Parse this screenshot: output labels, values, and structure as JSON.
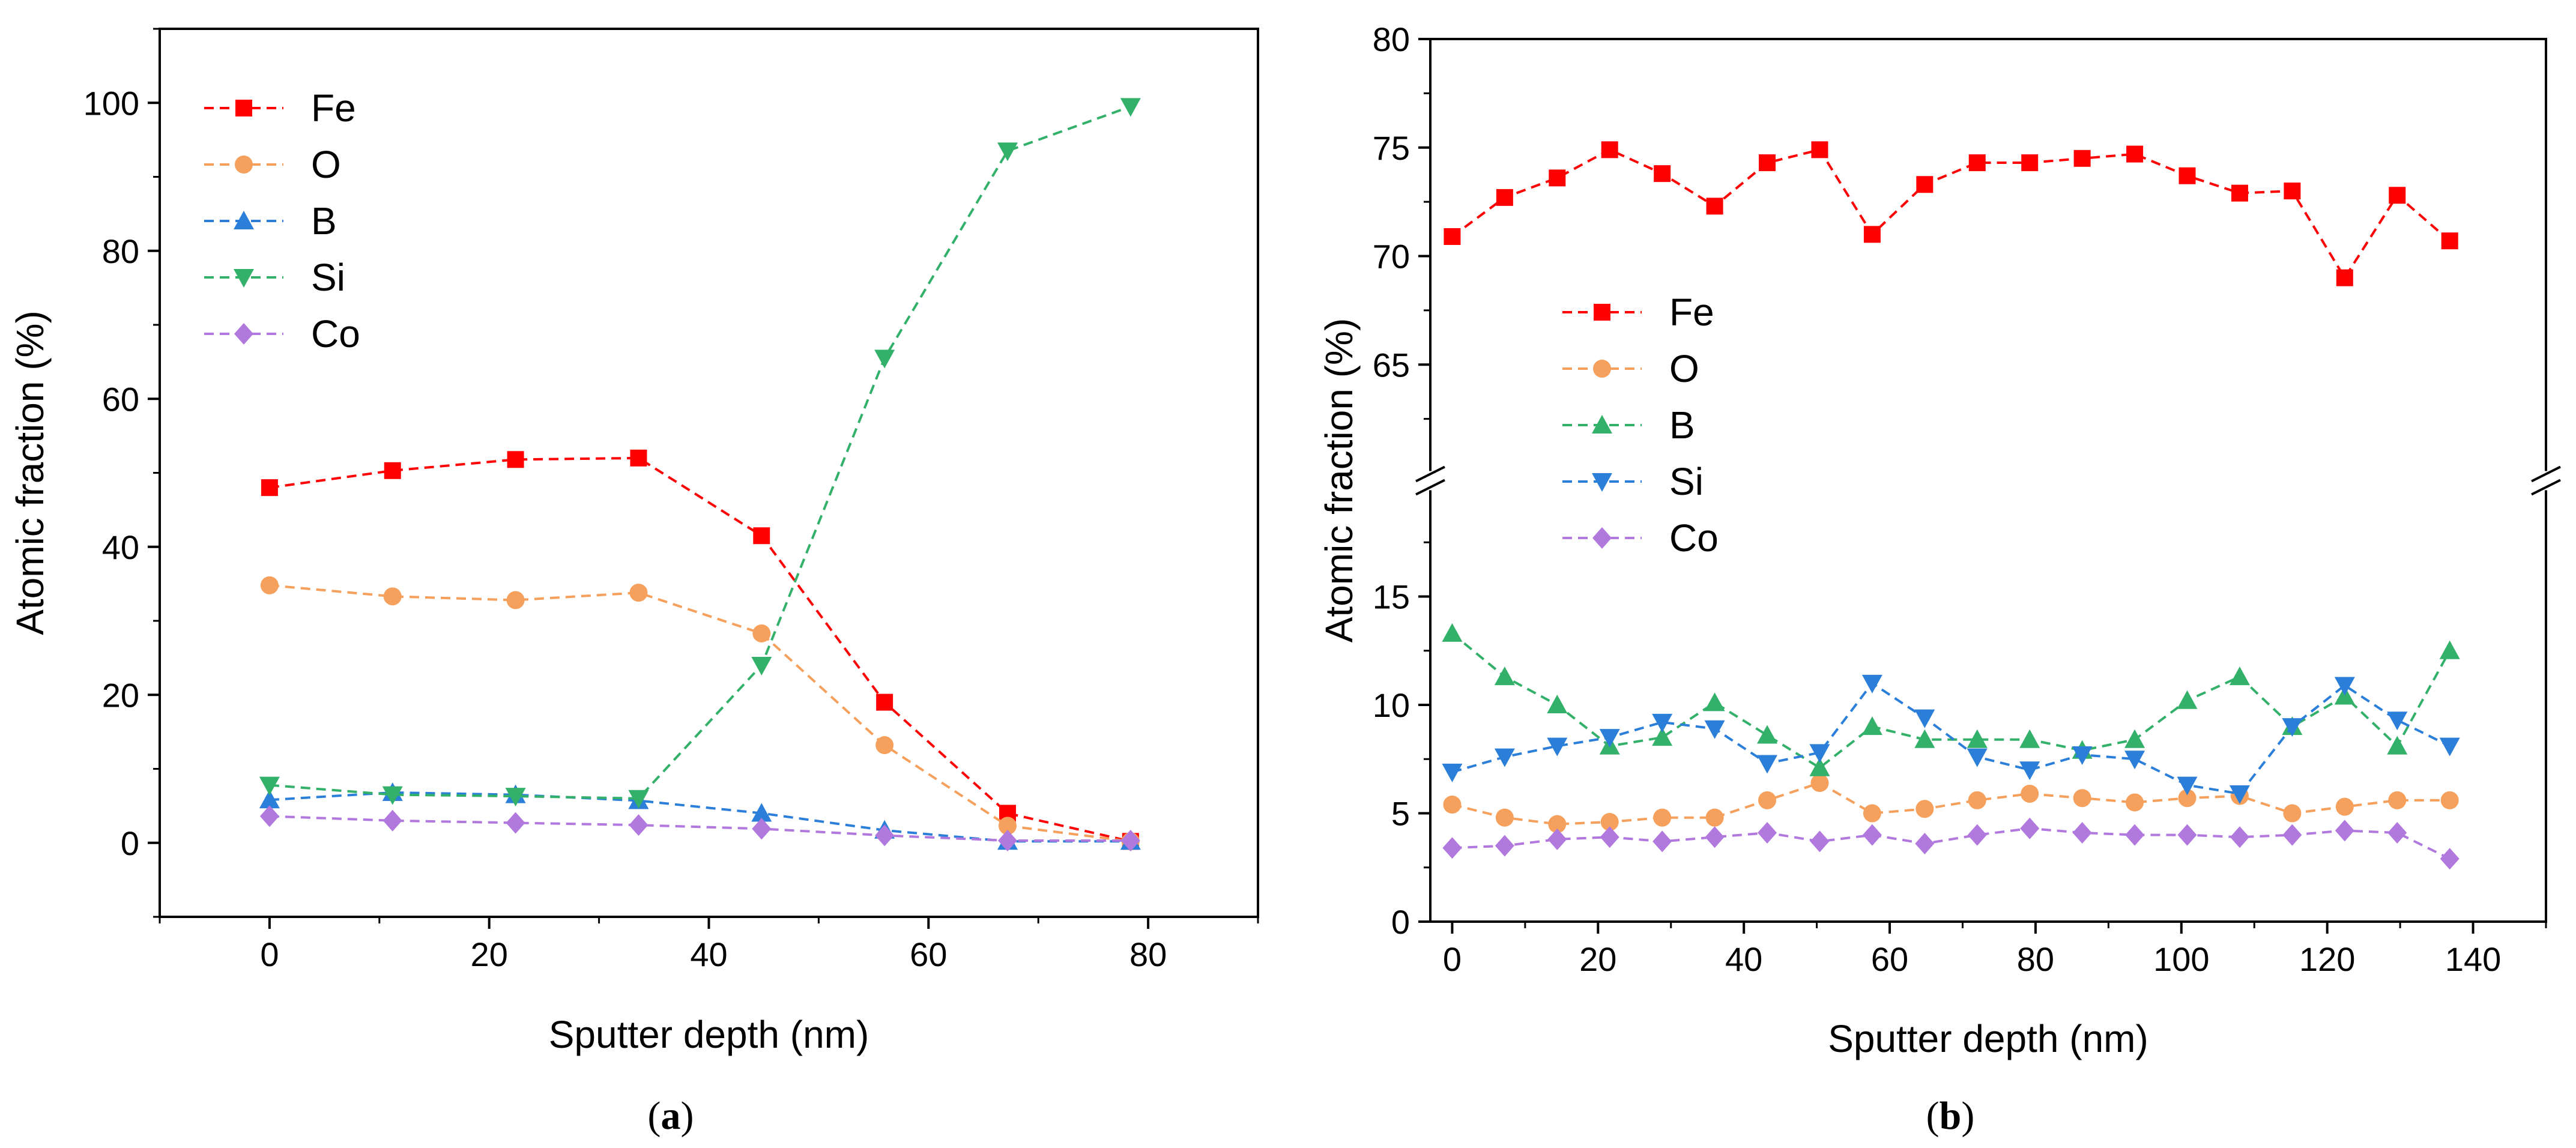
{
  "chart_data": [
    {
      "type": "line",
      "panel_label": "a",
      "xlabel": "Sputter depth (nm)",
      "ylabel": "Atomic fraction (%)",
      "xlim": [
        -10,
        90
      ],
      "ylim": [
        -10,
        110
      ],
      "xticks": [
        0,
        20,
        40,
        60,
        80
      ],
      "yticks": [
        0,
        20,
        40,
        60,
        80,
        100
      ],
      "legend_position": "top-left",
      "x": [
        0,
        11.2,
        22.4,
        33.6,
        44.8,
        56,
        67.2,
        78.4
      ],
      "series": [
        {
          "name": "Fe",
          "marker": "square",
          "color": "#ff0000",
          "values": [
            48,
            50.3,
            51.8,
            52,
            41.5,
            19,
            4,
            0.2
          ]
        },
        {
          "name": "O",
          "marker": "circle",
          "color": "#f5a05c",
          "values": [
            34.8,
            33.3,
            32.8,
            33.8,
            28.3,
            13.2,
            2.3,
            0.2
          ]
        },
        {
          "name": "B",
          "marker": "triangle-up",
          "color": "#2b7fd9",
          "values": [
            5.8,
            6.8,
            6.5,
            5.7,
            4.0,
            1.7,
            0.2,
            0.2
          ]
        },
        {
          "name": "Si",
          "marker": "triangle-down",
          "color": "#33b06a",
          "values": [
            7.8,
            6.5,
            6.3,
            6.0,
            24,
            65.5,
            93.5,
            99.5
          ]
        },
        {
          "name": "Co",
          "marker": "diamond",
          "color": "#b179dd",
          "values": [
            3.6,
            3.0,
            2.7,
            2.4,
            1.9,
            1.0,
            0.3,
            0.3
          ]
        }
      ]
    },
    {
      "type": "line",
      "panel_label": "b",
      "xlabel": "Sputter depth (nm)",
      "ylabel": "Atomic fraction (%)",
      "xlim": [
        -3,
        150
      ],
      "axis_break": true,
      "ylim_upper": [
        60,
        80
      ],
      "ylim_lower": [
        0,
        20
      ],
      "yticks_upper": [
        65,
        70,
        75,
        80
      ],
      "yticks_lower": [
        0,
        5,
        10,
        15
      ],
      "xticks": [
        0,
        20,
        40,
        60,
        80,
        100,
        120,
        140
      ],
      "legend_position": "middle-left",
      "x": [
        0,
        7.2,
        14.4,
        21.6,
        28.8,
        36,
        43.2,
        50.4,
        57.6,
        64.8,
        72,
        79.2,
        86.4,
        93.6,
        100.8,
        108,
        115.2,
        122.4,
        129.6,
        136.8
      ],
      "series": [
        {
          "name": "Fe",
          "marker": "square",
          "color": "#ff0000",
          "values": [
            70.9,
            72.7,
            73.6,
            74.9,
            73.8,
            72.3,
            74.3,
            74.9,
            71.0,
            73.3,
            74.3,
            74.3,
            74.5,
            74.7,
            73.7,
            72.9,
            73.0,
            69.0,
            72.8,
            70.7
          ]
        },
        {
          "name": "O",
          "marker": "circle",
          "color": "#f5a05c",
          "values": [
            5.4,
            4.8,
            4.5,
            4.6,
            4.8,
            4.8,
            5.6,
            6.4,
            5.0,
            5.2,
            5.6,
            5.9,
            5.7,
            5.5,
            5.7,
            5.8,
            5.0,
            5.3,
            5.6,
            5.6
          ]
        },
        {
          "name": "B",
          "marker": "triangle-up",
          "color": "#33b06a",
          "values": [
            13.3,
            11.3,
            10.0,
            8.1,
            8.5,
            10.1,
            8.6,
            7.1,
            9.0,
            8.4,
            8.4,
            8.4,
            7.9,
            8.4,
            10.2,
            11.3,
            9.0,
            10.4,
            8.1,
            12.5
          ]
        },
        {
          "name": "Si",
          "marker": "triangle-down",
          "color": "#2b7fd9",
          "values": [
            6.9,
            7.6,
            8.1,
            8.5,
            9.2,
            8.9,
            7.3,
            7.8,
            11.0,
            9.4,
            7.6,
            7.0,
            7.7,
            7.5,
            6.3,
            5.9,
            9.0,
            10.9,
            9.3,
            8.1
          ]
        },
        {
          "name": "Co",
          "marker": "diamond",
          "color": "#b179dd",
          "values": [
            3.4,
            3.5,
            3.8,
            3.9,
            3.7,
            3.9,
            4.1,
            3.7,
            4.0,
            3.6,
            4.0,
            4.3,
            4.1,
            4.0,
            4.0,
            3.9,
            4.0,
            4.2,
            4.1,
            2.9
          ]
        }
      ]
    }
  ],
  "captions": {
    "a": {
      "open": "(",
      "letter": "a",
      "close": ")"
    },
    "b": {
      "open": "(",
      "letter": "b",
      "close": ")"
    }
  }
}
